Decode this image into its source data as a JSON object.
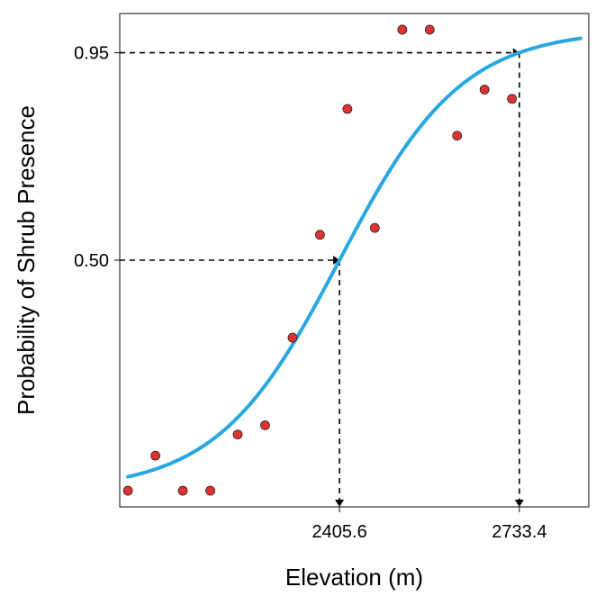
{
  "chart_data": {
    "type": "scatter",
    "title": "",
    "xlabel": "Elevation (m)",
    "ylabel": "Probability of Shrub Presence",
    "xlim": [
      2005,
      2860
    ],
    "ylim": [
      -0.035,
      1.035
    ],
    "x_ticks": [
      {
        "value": 2405.6,
        "label": "2405.6"
      },
      {
        "value": 2733.4,
        "label": "2733.4"
      }
    ],
    "y_ticks": [
      {
        "value": 0.5,
        "label": "0.50"
      },
      {
        "value": 0.95,
        "label": "0.95"
      }
    ],
    "grid": false,
    "colors": {
      "points": "#e03232",
      "point_edge": "#222222",
      "curve": "#29a8e0",
      "reference_lines": "#000000"
    },
    "points": [
      {
        "x": 2020,
        "y": 0.0
      },
      {
        "x": 2070,
        "y": 0.076
      },
      {
        "x": 2120,
        "y": 0.0
      },
      {
        "x": 2170,
        "y": 0.0
      },
      {
        "x": 2220,
        "y": 0.122
      },
      {
        "x": 2270,
        "y": 0.142
      },
      {
        "x": 2320,
        "y": 0.332
      },
      {
        "x": 2370,
        "y": 0.555
      },
      {
        "x": 2420,
        "y": 0.828
      },
      {
        "x": 2470,
        "y": 0.57
      },
      {
        "x": 2520,
        "y": 1.0
      },
      {
        "x": 2570,
        "y": 1.0
      },
      {
        "x": 2620,
        "y": 0.77
      },
      {
        "x": 2670,
        "y": 0.87
      },
      {
        "x": 2720,
        "y": 0.85
      }
    ],
    "curve": {
      "type": "logistic",
      "midpoint": 2405.6,
      "p95_x": 2733.4,
      "x_range": [
        2020,
        2845
      ]
    },
    "reference_lines": [
      {
        "x": 2405.6,
        "y": 0.5
      },
      {
        "x": 2733.4,
        "y": 0.95
      }
    ]
  }
}
